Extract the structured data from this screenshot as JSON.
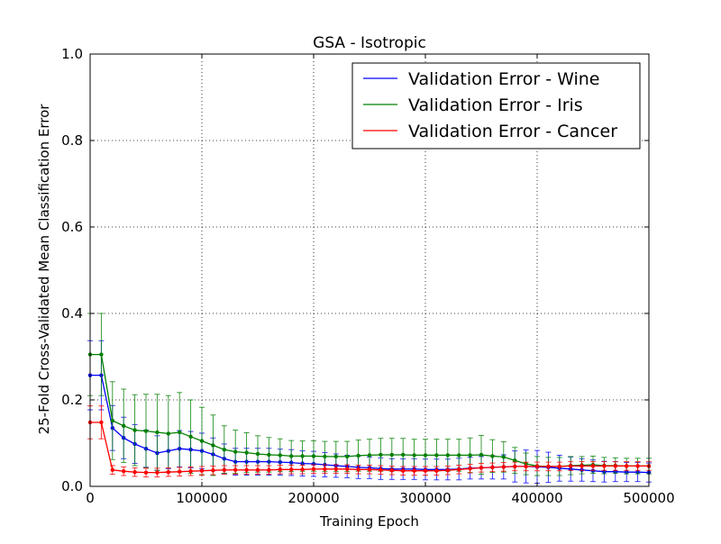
{
  "chart_data": {
    "type": "line",
    "title": "GSA - Isotropic",
    "xlabel": "Training Epoch",
    "ylabel": "25-Fold Cross-Validated Mean Classification Error",
    "xlim": [
      0,
      500000
    ],
    "ylim": [
      0.0,
      1.0
    ],
    "xticks": [
      0,
      100000,
      200000,
      300000,
      400000,
      500000
    ],
    "xtick_labels": [
      "0",
      "100000",
      "200000",
      "300000",
      "400000",
      "500000"
    ],
    "yticks": [
      0.0,
      0.2,
      0.4,
      0.6,
      0.8,
      1.0
    ],
    "ytick_labels": [
      "0.0",
      "0.2",
      "0.4",
      "0.6",
      "0.8",
      "1.0"
    ],
    "grid": true,
    "legend_position": "top-right",
    "x": [
      0,
      10000,
      20000,
      30000,
      40000,
      50000,
      60000,
      70000,
      80000,
      90000,
      100000,
      110000,
      120000,
      130000,
      140000,
      150000,
      160000,
      170000,
      180000,
      190000,
      200000,
      210000,
      220000,
      230000,
      240000,
      250000,
      260000,
      270000,
      280000,
      290000,
      300000,
      310000,
      320000,
      330000,
      340000,
      350000,
      360000,
      370000,
      380000,
      390000,
      400000,
      410000,
      420000,
      430000,
      440000,
      450000,
      460000,
      470000,
      480000,
      490000,
      500000
    ],
    "series": [
      {
        "name": "Validation Error - Wine",
        "color": "#0000ff",
        "values": [
          0.257,
          0.257,
          0.135,
          0.112,
          0.098,
          0.087,
          0.077,
          0.082,
          0.087,
          0.085,
          0.082,
          0.074,
          0.064,
          0.057,
          0.057,
          0.057,
          0.057,
          0.056,
          0.055,
          0.053,
          0.052,
          0.05,
          0.048,
          0.046,
          0.044,
          0.043,
          0.041,
          0.04,
          0.04,
          0.04,
          0.039,
          0.039,
          0.039,
          0.04,
          0.042,
          0.043,
          0.044,
          0.045,
          0.046,
          0.046,
          0.045,
          0.044,
          0.042,
          0.04,
          0.038,
          0.036,
          0.034,
          0.034,
          0.033,
          0.033,
          0.032
        ],
        "errors": [
          0.08,
          0.08,
          0.052,
          0.048,
          0.045,
          0.043,
          0.04,
          0.041,
          0.042,
          0.042,
          0.041,
          0.038,
          0.034,
          0.031,
          0.031,
          0.031,
          0.031,
          0.03,
          0.03,
          0.029,
          0.029,
          0.028,
          0.027,
          0.026,
          0.026,
          0.025,
          0.025,
          0.024,
          0.024,
          0.024,
          0.024,
          0.024,
          0.024,
          0.025,
          0.025,
          0.026,
          0.027,
          0.028,
          0.036,
          0.038,
          0.038,
          0.035,
          0.03,
          0.028,
          0.026,
          0.025,
          0.024,
          0.023,
          0.022,
          0.022,
          0.022
        ]
      },
      {
        "name": "Validation Error - Iris",
        "color": "#008000",
        "values": [
          0.305,
          0.305,
          0.152,
          0.14,
          0.13,
          0.128,
          0.125,
          0.122,
          0.125,
          0.115,
          0.105,
          0.095,
          0.085,
          0.08,
          0.078,
          0.075,
          0.073,
          0.072,
          0.07,
          0.07,
          0.07,
          0.069,
          0.069,
          0.069,
          0.071,
          0.072,
          0.073,
          0.073,
          0.073,
          0.072,
          0.072,
          0.072,
          0.072,
          0.072,
          0.072,
          0.073,
          0.07,
          0.068,
          0.06,
          0.052,
          0.047,
          0.046,
          0.046,
          0.048,
          0.049,
          0.05,
          0.048,
          0.048,
          0.047,
          0.047,
          0.047
        ],
        "errors": [
          0.095,
          0.095,
          0.09,
          0.085,
          0.082,
          0.085,
          0.088,
          0.088,
          0.092,
          0.085,
          0.078,
          0.07,
          0.055,
          0.05,
          0.046,
          0.042,
          0.04,
          0.038,
          0.036,
          0.035,
          0.035,
          0.035,
          0.035,
          0.035,
          0.036,
          0.037,
          0.038,
          0.038,
          0.038,
          0.037,
          0.037,
          0.037,
          0.037,
          0.037,
          0.04,
          0.045,
          0.038,
          0.035,
          0.03,
          0.025,
          0.022,
          0.021,
          0.021,
          0.021,
          0.02,
          0.02,
          0.019,
          0.018,
          0.018,
          0.018,
          0.018
        ]
      },
      {
        "name": "Validation Error - Cancer",
        "color": "#ff0000",
        "values": [
          0.148,
          0.148,
          0.038,
          0.035,
          0.033,
          0.032,
          0.032,
          0.033,
          0.034,
          0.035,
          0.036,
          0.037,
          0.038,
          0.038,
          0.038,
          0.038,
          0.038,
          0.039,
          0.039,
          0.039,
          0.04,
          0.04,
          0.04,
          0.04,
          0.039,
          0.039,
          0.038,
          0.037,
          0.036,
          0.036,
          0.036,
          0.036,
          0.037,
          0.039,
          0.041,
          0.043,
          0.044,
          0.045,
          0.046,
          0.046,
          0.046,
          0.046,
          0.046,
          0.047,
          0.047,
          0.047,
          0.047,
          0.047,
          0.047,
          0.047,
          0.047
        ],
        "errors": [
          0.038,
          0.038,
          0.01,
          0.01,
          0.01,
          0.01,
          0.01,
          0.01,
          0.01,
          0.01,
          0.01,
          0.01,
          0.01,
          0.01,
          0.01,
          0.01,
          0.01,
          0.01,
          0.01,
          0.01,
          0.01,
          0.01,
          0.01,
          0.01,
          0.01,
          0.01,
          0.01,
          0.01,
          0.01,
          0.01,
          0.01,
          0.01,
          0.01,
          0.01,
          0.01,
          0.01,
          0.01,
          0.01,
          0.01,
          0.01,
          0.01,
          0.01,
          0.01,
          0.01,
          0.01,
          0.01,
          0.01,
          0.01,
          0.01,
          0.01,
          0.01
        ]
      }
    ]
  }
}
